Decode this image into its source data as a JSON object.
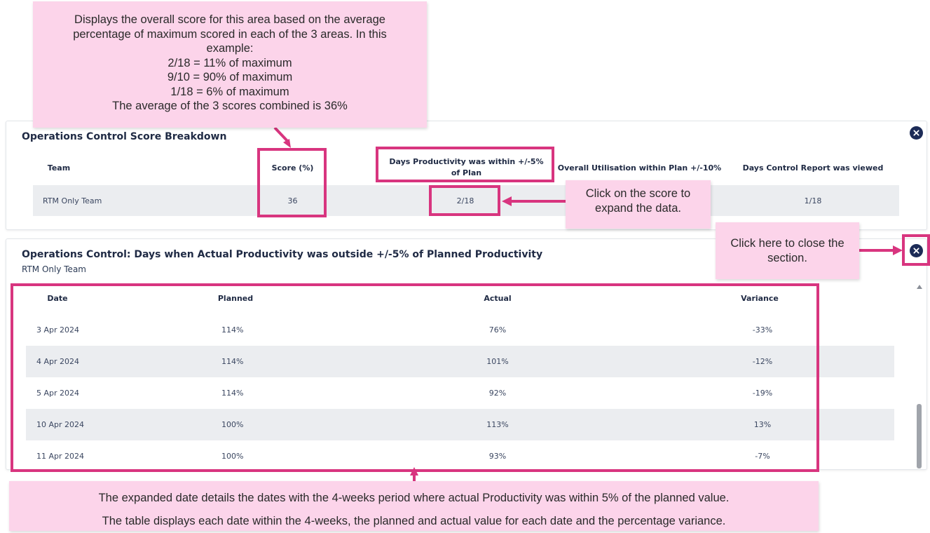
{
  "breakdown": {
    "title": "Operations Control Score Breakdown",
    "headers": {
      "team": "Team",
      "score": "Score (%)",
      "productivity": "Days Productivity was within +/-5% of Plan",
      "utilisation": "Overall Utilisation within Plan +/-10%",
      "report_viewed": "Days Control Report was viewed"
    },
    "row": {
      "team": "RTM Only Team",
      "score": "36",
      "productivity": "2/18",
      "utilisation": "",
      "report_viewed": "1/18"
    },
    "close_icon": "close-circle-icon"
  },
  "detail": {
    "title": "Operations Control: Days when Actual Productivity was outside +/-5% of Planned Productivity",
    "subtitle": "RTM Only Team",
    "close_icon": "close-circle-icon",
    "headers": {
      "date": "Date",
      "planned": "Planned",
      "actual": "Actual",
      "variance": "Variance"
    },
    "rows": [
      {
        "date": "3 Apr 2024",
        "planned": "114%",
        "actual": "76%",
        "variance": "-33%"
      },
      {
        "date": "4 Apr 2024",
        "planned": "114%",
        "actual": "101%",
        "variance": "-12%"
      },
      {
        "date": "5 Apr 2024",
        "planned": "114%",
        "actual": "92%",
        "variance": "-19%"
      },
      {
        "date": "10 Apr 2024",
        "planned": "100%",
        "actual": "113%",
        "variance": "13%"
      },
      {
        "date": "11 Apr 2024",
        "planned": "100%",
        "actual": "93%",
        "variance": "-7%"
      }
    ]
  },
  "annotations": {
    "top_note": [
      "Displays the overall score for this area based on the average",
      "percentage of maximum scored in each of the 3 areas. In this",
      "example:",
      "2/18 = 11% of maximum",
      "9/10 = 90% of maximum",
      "1/18 = 6% of maximum",
      "The average of the 3 scores combined is 36%"
    ],
    "expand_note": [
      "Click on the score to",
      "expand the data."
    ],
    "close_note": [
      "Click here to close the",
      "section."
    ],
    "bottom_note": [
      "The expanded date details the dates with the 4-weeks period where actual Productivity was within 5% of the planned value.",
      "The table displays each date within the 4-weeks, the planned and actual value for each date and the percentage variance."
    ]
  },
  "colors": {
    "annotation_bg": "#fcd4ea",
    "highlight": "#d8357f",
    "close_button": "#1c2b57",
    "row_band": "#ebedf0"
  }
}
